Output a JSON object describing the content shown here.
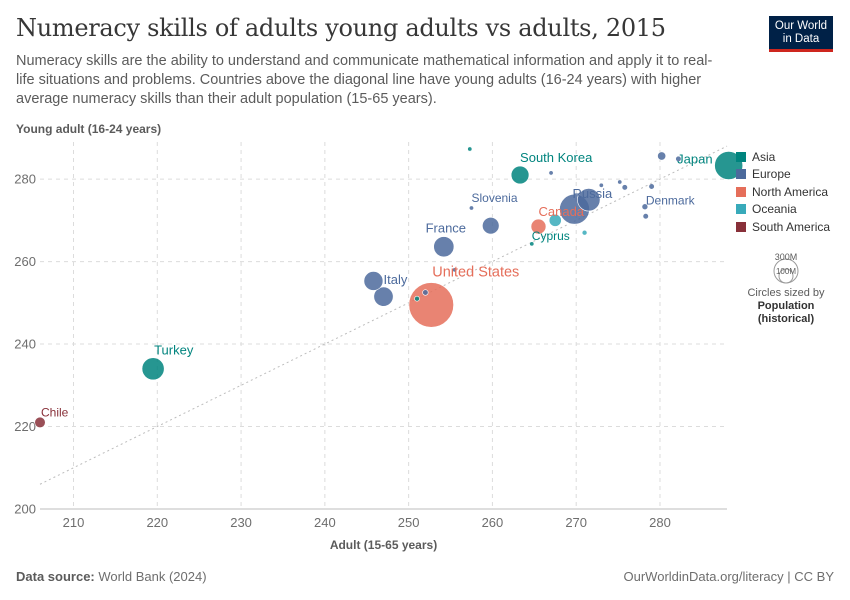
{
  "header": {
    "title": "Numeracy skills of adults young adults vs adults, 2015",
    "subtitle": "Numeracy skills are the ability to understand and communicate mathematical information and apply it to real-life situations and problems. Countries above the diagonal line have young adults (16-24 years) with higher average numeracy skills than their adult population (15-65 years).",
    "logo_line1": "Our World",
    "logo_line2": "in Data"
  },
  "footer": {
    "source_label": "Data source:",
    "source_value": "World Bank (2024)",
    "url": "OurWorldinData.org/literacy | CC BY"
  },
  "legend": {
    "items": [
      {
        "label": "Asia",
        "color": "#00847e"
      },
      {
        "label": "Europe",
        "color": "#4c6a9c"
      },
      {
        "label": "North America",
        "color": "#e56e5a"
      },
      {
        "label": "Oceania",
        "color": "#38aaba"
      },
      {
        "label": "South America",
        "color": "#883039"
      }
    ],
    "size_large": "300M",
    "size_small": "100M",
    "size_caption": "Circles sized by",
    "size_var1": "Population",
    "size_var2": "(historical)"
  },
  "chart_data": {
    "type": "scatter",
    "title": "Numeracy skills of adults young adults vs adults, 2015",
    "xlabel": "Adult (15-65 years)",
    "ylabel": "Young adult (16-24 years)",
    "xlim": [
      206,
      288
    ],
    "ylim": [
      200,
      289
    ],
    "xticks": [
      210,
      220,
      230,
      240,
      250,
      260,
      270,
      280
    ],
    "yticks": [
      200,
      220,
      240,
      260,
      280
    ],
    "diagonal": true,
    "points": [
      {
        "name": "Chile",
        "x": 206,
        "y": 221,
        "pop": 18,
        "region": "South America",
        "label": true
      },
      {
        "name": "Turkey",
        "x": 219.5,
        "y": 234,
        "pop": 79,
        "region": "Asia",
        "label": true
      },
      {
        "name": "United States",
        "x": 252.7,
        "y": 249.5,
        "pop": 320,
        "region": "North America",
        "label": true
      },
      {
        "name": "Italy",
        "x": 247,
        "y": 251.5,
        "pop": 60,
        "region": "Europe",
        "label": true
      },
      {
        "name": "",
        "x": 245.8,
        "y": 255.3,
        "pop": 58,
        "region": "Europe",
        "label": false
      },
      {
        "name": "",
        "x": 252,
        "y": 252.5,
        "pop": 5,
        "region": "Europe",
        "label": false
      },
      {
        "name": "",
        "x": 251,
        "y": 251,
        "pop": 4,
        "region": "Asia",
        "label": false
      },
      {
        "name": "",
        "x": 255.5,
        "y": 258,
        "pop": 1,
        "region": "Europe",
        "label": false
      },
      {
        "name": "France",
        "x": 254.2,
        "y": 263.6,
        "pop": 66,
        "region": "Europe",
        "label": true
      },
      {
        "name": "",
        "x": 259.8,
        "y": 268.7,
        "pop": 45,
        "region": "Europe",
        "label": false
      },
      {
        "name": "Slovenia",
        "x": 257.5,
        "y": 273,
        "pop": 2,
        "region": "Europe",
        "label": true
      },
      {
        "name": "",
        "x": 257.3,
        "y": 287.3,
        "pop": 2,
        "region": "Asia",
        "label": false
      },
      {
        "name": "South Korea",
        "x": 263.3,
        "y": 281,
        "pop": 51,
        "region": "Asia",
        "label": true
      },
      {
        "name": "Cyprus",
        "x": 264.7,
        "y": 264.3,
        "pop": 1,
        "region": "Asia",
        "label": true
      },
      {
        "name": "Canada",
        "x": 265.5,
        "y": 268.5,
        "pop": 36,
        "region": "North America",
        "label": true
      },
      {
        "name": "",
        "x": 267.5,
        "y": 270,
        "pop": 24,
        "region": "Oceania",
        "label": false
      },
      {
        "name": "",
        "x": 267,
        "y": 281.5,
        "pop": 1,
        "region": "Europe",
        "label": false
      },
      {
        "name": "Russia",
        "x": 269.8,
        "y": 272.7,
        "pop": 144,
        "region": "Europe",
        "label": true
      },
      {
        "name": "",
        "x": 271.5,
        "y": 275,
        "pop": 82,
        "region": "Europe",
        "label": false
      },
      {
        "name": "",
        "x": 271,
        "y": 267,
        "pop": 4,
        "region": "Oceania",
        "label": false
      },
      {
        "name": "",
        "x": 273,
        "y": 278.5,
        "pop": 2,
        "region": "Europe",
        "label": false
      },
      {
        "name": "",
        "x": 275.2,
        "y": 279.3,
        "pop": 3,
        "region": "Europe",
        "label": false
      },
      {
        "name": "",
        "x": 275.8,
        "y": 278,
        "pop": 5,
        "region": "Europe",
        "label": false
      },
      {
        "name": "Denmark",
        "x": 278.2,
        "y": 273.3,
        "pop": 5.7,
        "region": "Europe",
        "label": true
      },
      {
        "name": "",
        "x": 278.3,
        "y": 271,
        "pop": 5,
        "region": "Europe",
        "label": false
      },
      {
        "name": "",
        "x": 279,
        "y": 278.2,
        "pop": 5,
        "region": "Europe",
        "label": false
      },
      {
        "name": "",
        "x": 280.2,
        "y": 285.6,
        "pop": 11,
        "region": "Europe",
        "label": false
      },
      {
        "name": "",
        "x": 282.2,
        "y": 284.9,
        "pop": 5,
        "region": "Europe",
        "label": false
      },
      {
        "name": "Japan",
        "x": 288.2,
        "y": 283.3,
        "pop": 127,
        "region": "Asia",
        "label": true
      }
    ]
  }
}
